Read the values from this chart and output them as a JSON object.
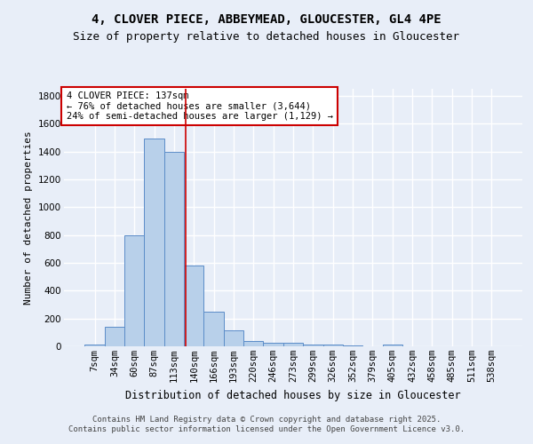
{
  "title1": "4, CLOVER PIECE, ABBEYMEAD, GLOUCESTER, GL4 4PE",
  "title2": "Size of property relative to detached houses in Gloucester",
  "xlabel": "Distribution of detached houses by size in Gloucester",
  "ylabel": "Number of detached properties",
  "categories": [
    "7sqm",
    "34sqm",
    "60sqm",
    "87sqm",
    "113sqm",
    "140sqm",
    "166sqm",
    "193sqm",
    "220sqm",
    "246sqm",
    "273sqm",
    "299sqm",
    "326sqm",
    "352sqm",
    "379sqm",
    "405sqm",
    "432sqm",
    "458sqm",
    "485sqm",
    "511sqm",
    "538sqm"
  ],
  "values": [
    10,
    140,
    800,
    1490,
    1400,
    580,
    250,
    115,
    40,
    25,
    25,
    10,
    15,
    5,
    2,
    15,
    0,
    0,
    0,
    0,
    0
  ],
  "bar_color": "#b8d0ea",
  "bar_edge_color": "#5b8cc8",
  "annotation_box_text": "4 CLOVER PIECE: 137sqm\n← 76% of detached houses are smaller (3,644)\n24% of semi-detached houses are larger (1,129) →",
  "vline_x": 4.57,
  "vline_color": "#cc0000",
  "ylim": [
    0,
    1850
  ],
  "background_color": "#e8eef8",
  "plot_bg_color": "#e8eef8",
  "grid_color": "#ffffff",
  "footer_text": "Contains HM Land Registry data © Crown copyright and database right 2025.\nContains public sector information licensed under the Open Government Licence v3.0.",
  "title1_fontsize": 10,
  "title2_fontsize": 9,
  "xlabel_fontsize": 8.5,
  "ylabel_fontsize": 8,
  "tick_fontsize": 7.5,
  "annotation_fontsize": 7.5,
  "footer_fontsize": 6.5,
  "yticks": [
    0,
    200,
    400,
    600,
    800,
    1000,
    1200,
    1400,
    1600,
    1800
  ]
}
